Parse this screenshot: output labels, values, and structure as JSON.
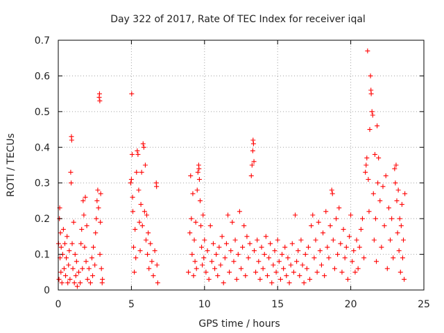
{
  "chart_data": {
    "type": "scatter",
    "title": "Day 322 of 2017, Rate Of TEC Index for receiver iqal",
    "xlabel": "GPS time / hours",
    "ylabel": "ROTI / TECUs",
    "xlim": [
      0,
      25
    ],
    "ylim": [
      0,
      0.7
    ],
    "xticks": [
      "0",
      "5",
      "10",
      "15",
      "20",
      "25"
    ],
    "yticks": [
      "0",
      "0.1",
      "0.2",
      "0.3",
      "0.4",
      "0.5",
      "0.6",
      "0.7"
    ],
    "grid": true,
    "marker": "plus",
    "color": "#ff0000",
    "series": [
      {
        "points": [
          [
            0.02,
            0.13
          ],
          [
            0.05,
            0.03
          ],
          [
            0.08,
            0.2
          ],
          [
            0.1,
            0.23
          ],
          [
            0.12,
            0.09
          ],
          [
            0.15,
            0.16
          ],
          [
            0.18,
            0.05
          ],
          [
            0.2,
            0.12
          ],
          [
            0.25,
            0.02
          ],
          [
            0.3,
            0.1
          ],
          [
            0.35,
            0.17
          ],
          [
            0.4,
            0.06
          ],
          [
            0.45,
            0.13
          ],
          [
            0.5,
            0.04
          ],
          [
            0.55,
            0.09
          ],
          [
            0.6,
            0.15
          ],
          [
            0.65,
            0.02
          ],
          [
            0.7,
            0.07
          ],
          [
            0.75,
            0.11
          ],
          [
            0.8,
            0.03
          ],
          [
            0.85,
            0.33
          ],
          [
            0.88,
            0.3
          ],
          [
            0.9,
            0.43
          ],
          [
            0.92,
            0.42
          ],
          [
            0.95,
            0.13
          ],
          [
            1.0,
            0.06
          ],
          [
            1.05,
            0.19
          ],
          [
            1.1,
            0.02
          ],
          [
            1.15,
            0.1
          ],
          [
            1.2,
            0.04
          ],
          [
            1.25,
            0.08
          ],
          [
            1.3,
            0.01
          ],
          [
            1.4,
            0.05
          ],
          [
            1.5,
            0.02
          ],
          [
            1.55,
            0.13
          ],
          [
            1.6,
            0.17
          ],
          [
            1.65,
            0.06
          ],
          [
            1.7,
            0.25
          ],
          [
            1.75,
            0.21
          ],
          [
            1.8,
            0.12
          ],
          [
            1.85,
            0.26
          ],
          [
            1.9,
            0.08
          ],
          [
            1.95,
            0.18
          ],
          [
            2.0,
            0.03
          ],
          [
            2.1,
            0.06
          ],
          [
            2.2,
            0.02
          ],
          [
            2.3,
            0.09
          ],
          [
            2.35,
            0.04
          ],
          [
            2.4,
            0.12
          ],
          [
            2.5,
            0.07
          ],
          [
            2.55,
            0.16
          ],
          [
            2.6,
            0.2
          ],
          [
            2.65,
            0.25
          ],
          [
            2.7,
            0.28
          ],
          [
            2.75,
            0.23
          ],
          [
            2.8,
            0.54
          ],
          [
            2.82,
            0.55
          ],
          [
            2.84,
            0.53
          ],
          [
            2.85,
            0.1
          ],
          [
            2.88,
            0.19
          ],
          [
            2.9,
            0.27
          ],
          [
            2.95,
            0.06
          ],
          [
            3.0,
            0.02
          ],
          [
            3.02,
            0.03
          ],
          [
            4.95,
            0.3
          ],
          [
            5.0,
            0.31
          ],
          [
            5.02,
            0.55
          ],
          [
            5.05,
            0.38
          ],
          [
            5.08,
            0.26
          ],
          [
            5.1,
            0.22
          ],
          [
            5.15,
            0.12
          ],
          [
            5.2,
            0.05
          ],
          [
            5.25,
            0.17
          ],
          [
            5.3,
            0.09
          ],
          [
            5.35,
            0.33
          ],
          [
            5.4,
            0.39
          ],
          [
            5.45,
            0.38
          ],
          [
            5.5,
            0.28
          ],
          [
            5.55,
            0.19
          ],
          [
            5.6,
            0.11
          ],
          [
            5.65,
            0.24
          ],
          [
            5.7,
            0.33
          ],
          [
            5.75,
            0.18
          ],
          [
            5.8,
            0.41
          ],
          [
            5.85,
            0.4
          ],
          [
            5.9,
            0.22
          ],
          [
            5.95,
            0.35
          ],
          [
            6.0,
            0.14
          ],
          [
            6.05,
            0.21
          ],
          [
            6.1,
            0.1
          ],
          [
            6.15,
            0.16
          ],
          [
            6.2,
            0.06
          ],
          [
            6.3,
            0.13
          ],
          [
            6.4,
            0.08
          ],
          [
            6.5,
            0.04
          ],
          [
            6.6,
            0.11
          ],
          [
            6.7,
            0.3
          ],
          [
            6.72,
            0.29
          ],
          [
            6.75,
            0.07
          ],
          [
            6.8,
            0.02
          ],
          [
            8.9,
            0.05
          ],
          [
            9.0,
            0.16
          ],
          [
            9.05,
            0.32
          ],
          [
            9.1,
            0.2
          ],
          [
            9.15,
            0.1
          ],
          [
            9.2,
            0.27
          ],
          [
            9.25,
            0.04
          ],
          [
            9.3,
            0.14
          ],
          [
            9.35,
            0.08
          ],
          [
            9.4,
            0.19
          ],
          [
            9.45,
            0.06
          ],
          [
            9.5,
            0.28
          ],
          [
            9.55,
            0.33
          ],
          [
            9.6,
            0.35
          ],
          [
            9.62,
            0.34
          ],
          [
            9.65,
            0.31
          ],
          [
            9.7,
            0.25
          ],
          [
            9.75,
            0.18
          ],
          [
            9.8,
            0.12
          ],
          [
            9.85,
            0.07
          ],
          [
            9.9,
            0.21
          ],
          [
            9.95,
            0.09
          ],
          [
            10.0,
            0.14
          ],
          [
            10.1,
            0.05
          ],
          [
            10.2,
            0.11
          ],
          [
            10.3,
            0.03
          ],
          [
            10.4,
            0.18
          ],
          [
            10.5,
            0.08
          ],
          [
            10.6,
            0.13
          ],
          [
            10.7,
            0.06
          ],
          [
            10.8,
            0.1
          ],
          [
            10.9,
            0.04
          ],
          [
            11.0,
            0.12
          ],
          [
            11.1,
            0.07
          ],
          [
            11.2,
            0.15
          ],
          [
            11.3,
            0.02
          ],
          [
            11.4,
            0.09
          ],
          [
            11.5,
            0.13
          ],
          [
            11.6,
            0.21
          ],
          [
            11.7,
            0.05
          ],
          [
            11.8,
            0.11
          ],
          [
            11.9,
            0.19
          ],
          [
            12.0,
            0.08
          ],
          [
            12.1,
            0.14
          ],
          [
            12.2,
            0.03
          ],
          [
            12.3,
            0.1
          ],
          [
            12.4,
            0.22
          ],
          [
            12.5,
            0.06
          ],
          [
            12.6,
            0.12
          ],
          [
            12.7,
            0.18
          ],
          [
            12.8,
            0.04
          ],
          [
            12.9,
            0.15
          ],
          [
            13.0,
            0.09
          ],
          [
            13.1,
            0.13
          ],
          [
            13.2,
            0.32
          ],
          [
            13.25,
            0.35
          ],
          [
            13.3,
            0.39
          ],
          [
            13.32,
            0.42
          ],
          [
            13.35,
            0.41
          ],
          [
            13.38,
            0.36
          ],
          [
            13.4,
            0.11
          ],
          [
            13.5,
            0.05
          ],
          [
            13.6,
            0.14
          ],
          [
            13.7,
            0.08
          ],
          [
            13.8,
            0.03
          ],
          [
            13.9,
            0.12
          ],
          [
            14.0,
            0.06
          ],
          [
            14.1,
            0.1
          ],
          [
            14.2,
            0.15
          ],
          [
            14.3,
            0.04
          ],
          [
            14.4,
            0.09
          ],
          [
            14.5,
            0.13
          ],
          [
            14.6,
            0.02
          ],
          [
            14.7,
            0.07
          ],
          [
            14.8,
            0.11
          ],
          [
            14.9,
            0.05
          ],
          [
            15.0,
            0.14
          ],
          [
            15.1,
            0.08
          ],
          [
            15.2,
            0.03
          ],
          [
            15.3,
            0.1
          ],
          [
            15.4,
            0.06
          ],
          [
            15.5,
            0.12
          ],
          [
            15.6,
            0.04
          ],
          [
            15.7,
            0.09
          ],
          [
            15.8,
            0.02
          ],
          [
            15.9,
            0.07
          ],
          [
            16.0,
            0.13
          ],
          [
            16.1,
            0.05
          ],
          [
            16.2,
            0.21
          ],
          [
            16.3,
            0.08
          ],
          [
            16.4,
            0.11
          ],
          [
            16.5,
            0.04
          ],
          [
            16.6,
            0.14
          ],
          [
            16.7,
            0.07
          ],
          [
            16.8,
            0.02
          ],
          [
            16.9,
            0.1
          ],
          [
            17.0,
            0.06
          ],
          [
            17.1,
            0.12
          ],
          [
            17.2,
            0.03
          ],
          [
            17.3,
            0.18
          ],
          [
            17.4,
            0.21
          ],
          [
            17.5,
            0.09
          ],
          [
            17.6,
            0.14
          ],
          [
            17.7,
            0.05
          ],
          [
            17.8,
            0.19
          ],
          [
            17.9,
            0.11
          ],
          [
            18.0,
            0.07
          ],
          [
            18.1,
            0.16
          ],
          [
            18.2,
            0.04
          ],
          [
            18.3,
            0.22
          ],
          [
            18.4,
            0.12
          ],
          [
            18.5,
            0.09
          ],
          [
            18.6,
            0.18
          ],
          [
            18.7,
            0.28
          ],
          [
            18.75,
            0.27
          ],
          [
            18.8,
            0.14
          ],
          [
            18.9,
            0.06
          ],
          [
            19.0,
            0.2
          ],
          [
            19.1,
            0.1
          ],
          [
            19.2,
            0.23
          ],
          [
            19.3,
            0.13
          ],
          [
            19.4,
            0.05
          ],
          [
            19.5,
            0.17
          ],
          [
            19.6,
            0.09
          ],
          [
            19.7,
            0.12
          ],
          [
            19.8,
            0.03
          ],
          [
            19.9,
            0.15
          ],
          [
            20.0,
            0.21
          ],
          [
            20.1,
            0.08
          ],
          [
            20.2,
            0.11
          ],
          [
            20.3,
            0.05
          ],
          [
            20.4,
            0.14
          ],
          [
            20.5,
            0.06
          ],
          [
            20.6,
            0.12
          ],
          [
            20.7,
            0.17
          ],
          [
            20.8,
            0.2
          ],
          [
            20.9,
            0.09
          ],
          [
            21.0,
            0.33
          ],
          [
            21.05,
            0.35
          ],
          [
            21.1,
            0.37
          ],
          [
            21.15,
            0.67
          ],
          [
            21.2,
            0.31
          ],
          [
            21.25,
            0.22
          ],
          [
            21.3,
            0.45
          ],
          [
            21.35,
            0.6
          ],
          [
            21.38,
            0.56
          ],
          [
            21.4,
            0.55
          ],
          [
            21.45,
            0.5
          ],
          [
            21.5,
            0.49
          ],
          [
            21.55,
            0.27
          ],
          [
            21.6,
            0.14
          ],
          [
            21.65,
            0.38
          ],
          [
            21.7,
            0.2
          ],
          [
            21.75,
            0.08
          ],
          [
            21.8,
            0.46
          ],
          [
            21.85,
            0.3
          ],
          [
            21.9,
            0.37
          ],
          [
            22.0,
            0.25
          ],
          [
            22.1,
            0.12
          ],
          [
            22.2,
            0.29
          ],
          [
            22.3,
            0.18
          ],
          [
            22.4,
            0.32
          ],
          [
            22.5,
            0.06
          ],
          [
            22.6,
            0.23
          ],
          [
            22.7,
            0.14
          ],
          [
            22.8,
            0.2
          ],
          [
            22.9,
            0.09
          ],
          [
            23.0,
            0.34
          ],
          [
            23.05,
            0.3
          ],
          [
            23.1,
            0.35
          ],
          [
            23.15,
            0.25
          ],
          [
            23.2,
            0.16
          ],
          [
            23.25,
            0.28
          ],
          [
            23.3,
            0.11
          ],
          [
            23.35,
            0.2
          ],
          [
            23.4,
            0.05
          ],
          [
            23.45,
            0.18
          ],
          [
            23.5,
            0.24
          ],
          [
            23.55,
            0.09
          ],
          [
            23.6,
            0.14
          ],
          [
            23.65,
            0.03
          ],
          [
            23.7,
            0.27
          ]
        ]
      }
    ]
  }
}
